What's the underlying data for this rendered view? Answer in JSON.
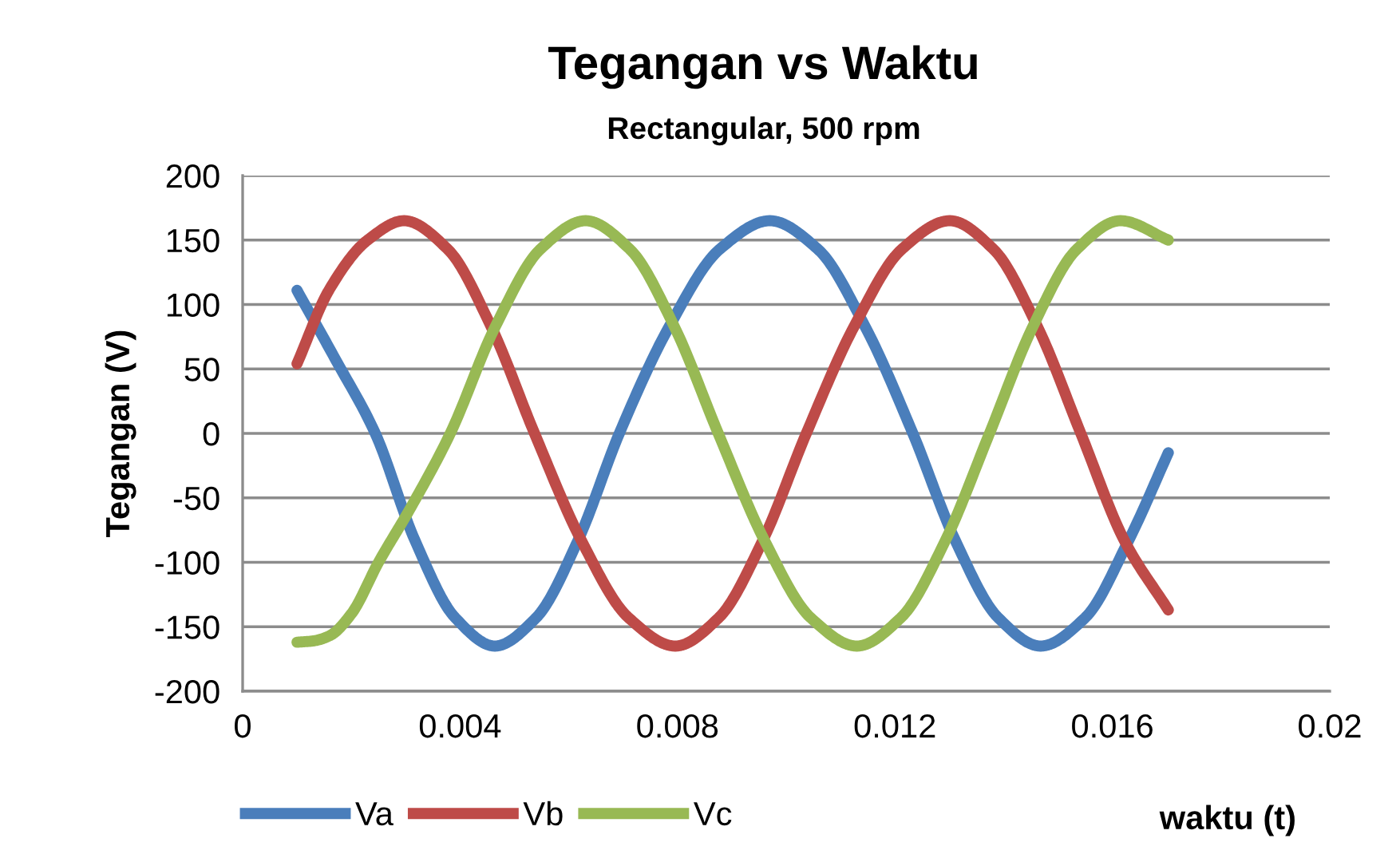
{
  "chart_data": {
    "type": "line",
    "title": "Tegangan vs Waktu",
    "subtitle": "Rectangular, 500 rpm",
    "xlabel": "waktu (t)",
    "ylabel": "Tegangan (V)",
    "xlim": [
      0,
      0.02
    ],
    "xticks": [
      0,
      0.004,
      0.008,
      0.012,
      0.016,
      0.02
    ],
    "ylim": [
      -200,
      200
    ],
    "yticks": [
      -200,
      -150,
      -100,
      -50,
      0,
      50,
      100,
      150,
      200
    ],
    "grid": "y",
    "legend": "bottom left",
    "marker": "none",
    "line_style": "solid",
    "series": [
      {
        "name": "Va",
        "color": "#4a7ebb",
        "x": [
          0.001,
          0.0017,
          0.00244,
          0.00317,
          0.00391,
          0.00464,
          0.0054,
          0.00617,
          0.00693,
          0.00785,
          0.00878,
          0.0097,
          0.01058,
          0.01145,
          0.01233,
          0.01311,
          0.0139,
          0.01468,
          0.0155,
          0.0163,
          0.01703
        ],
        "values": [
          111,
          58,
          0,
          -83,
          -143,
          -165,
          -143,
          -83,
          0,
          83,
          143,
          165,
          143,
          83,
          0,
          -83,
          -143,
          -165,
          -143,
          -83,
          -15
        ]
      },
      {
        "name": "Vb",
        "color": "#be4b48",
        "x": [
          0.001,
          0.0016,
          0.0023,
          0.00297,
          0.00377,
          0.00457,
          0.00537,
          0.00623,
          0.0071,
          0.00796,
          0.00876,
          0.00957,
          0.01037,
          0.01125,
          0.01213,
          0.01301,
          0.01381,
          0.01462,
          0.01542,
          0.01622,
          0.01703
        ],
        "values": [
          54,
          112,
          150,
          165,
          143,
          83,
          0,
          -83,
          -143,
          -165,
          -143,
          -83,
          0,
          83,
          143,
          165,
          143,
          83,
          0,
          -83,
          -137
        ]
      },
      {
        "name": "Vc",
        "color": "#98b954",
        "x": [
          0.001,
          0.0013,
          0.0016,
          0.002,
          0.0025,
          0.0031,
          0.00382,
          0.00465,
          0.00548,
          0.00631,
          0.00712,
          0.00794,
          0.00875,
          0.0096,
          0.01045,
          0.0113,
          0.01211,
          0.01293,
          0.01374,
          0.01454,
          0.01535,
          0.01615,
          0.01703
        ],
        "values": [
          -162,
          -161,
          -157,
          -140,
          -100,
          -57,
          0,
          83,
          143,
          165,
          143,
          83,
          0,
          -83,
          -143,
          -165,
          -143,
          -83,
          0,
          83,
          143,
          165,
          150
        ]
      }
    ]
  }
}
